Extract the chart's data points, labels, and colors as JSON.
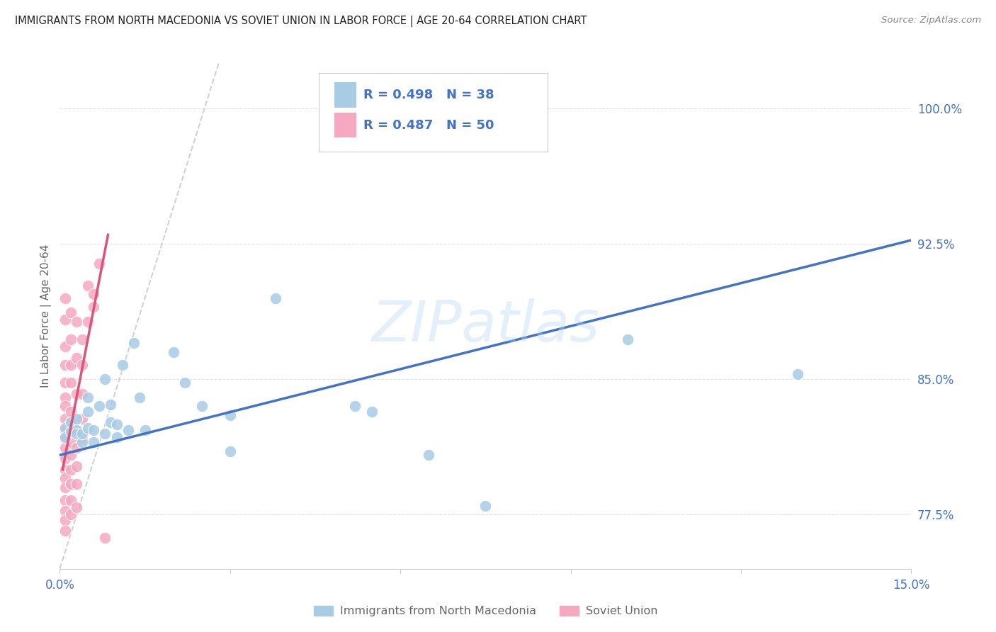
{
  "title": "IMMIGRANTS FROM NORTH MACEDONIA VS SOVIET UNION IN LABOR FORCE | AGE 20-64 CORRELATION CHART",
  "source": "Source: ZipAtlas.com",
  "ylabel": "In Labor Force | Age 20-64",
  "xlim": [
    0.0,
    0.15
  ],
  "ylim": [
    0.745,
    1.025
  ],
  "xticks": [
    0.0,
    0.03,
    0.06,
    0.09,
    0.12,
    0.15
  ],
  "xticklabels": [
    "0.0%",
    "",
    "",
    "",
    "",
    "15.0%"
  ],
  "ytick_positions": [
    0.775,
    0.85,
    0.925,
    1.0
  ],
  "yticklabels_right": [
    "77.5%",
    "85.0%",
    "92.5%",
    "100.0%"
  ],
  "watermark": "ZIPatlas",
  "blue_color": "#a8cce4",
  "pink_color": "#f5a8bf",
  "blue_line_color": "#4472c4",
  "pink_line_color": "#d9547a",
  "dashed_line_color": "#cccccc",
  "text_blue": "#4472c4",
  "label_color": "#666666",
  "title_color": "#222222",
  "source_color": "#888888",
  "grid_color": "#e0e0e0",
  "blue_scatter": [
    [
      0.001,
      0.823
    ],
    [
      0.001,
      0.818
    ],
    [
      0.002,
      0.821
    ],
    [
      0.002,
      0.826
    ],
    [
      0.003,
      0.822
    ],
    [
      0.003,
      0.82
    ],
    [
      0.003,
      0.828
    ],
    [
      0.004,
      0.815
    ],
    [
      0.004,
      0.82
    ],
    [
      0.005,
      0.823
    ],
    [
      0.005,
      0.832
    ],
    [
      0.005,
      0.84
    ],
    [
      0.006,
      0.815
    ],
    [
      0.006,
      0.822
    ],
    [
      0.007,
      0.835
    ],
    [
      0.008,
      0.85
    ],
    [
      0.008,
      0.82
    ],
    [
      0.009,
      0.836
    ],
    [
      0.009,
      0.826
    ],
    [
      0.01,
      0.825
    ],
    [
      0.01,
      0.818
    ],
    [
      0.011,
      0.858
    ],
    [
      0.012,
      0.822
    ],
    [
      0.013,
      0.87
    ],
    [
      0.014,
      0.84
    ],
    [
      0.015,
      0.822
    ],
    [
      0.02,
      0.865
    ],
    [
      0.022,
      0.848
    ],
    [
      0.025,
      0.835
    ],
    [
      0.03,
      0.81
    ],
    [
      0.03,
      0.83
    ],
    [
      0.038,
      0.895
    ],
    [
      0.052,
      0.835
    ],
    [
      0.055,
      0.832
    ],
    [
      0.065,
      0.808
    ],
    [
      0.075,
      0.78
    ],
    [
      0.1,
      0.872
    ],
    [
      0.13,
      0.853
    ]
  ],
  "pink_scatter": [
    [
      0.001,
      0.895
    ],
    [
      0.001,
      0.883
    ],
    [
      0.001,
      0.868
    ],
    [
      0.001,
      0.858
    ],
    [
      0.001,
      0.848
    ],
    [
      0.001,
      0.84
    ],
    [
      0.001,
      0.835
    ],
    [
      0.001,
      0.828
    ],
    [
      0.001,
      0.822
    ],
    [
      0.001,
      0.817
    ],
    [
      0.001,
      0.812
    ],
    [
      0.001,
      0.806
    ],
    [
      0.001,
      0.8
    ],
    [
      0.001,
      0.795
    ],
    [
      0.001,
      0.79
    ],
    [
      0.001,
      0.783
    ],
    [
      0.001,
      0.777
    ],
    [
      0.001,
      0.772
    ],
    [
      0.001,
      0.766
    ],
    [
      0.002,
      0.887
    ],
    [
      0.002,
      0.872
    ],
    [
      0.002,
      0.858
    ],
    [
      0.002,
      0.848
    ],
    [
      0.002,
      0.832
    ],
    [
      0.002,
      0.822
    ],
    [
      0.002,
      0.815
    ],
    [
      0.002,
      0.808
    ],
    [
      0.002,
      0.8
    ],
    [
      0.002,
      0.792
    ],
    [
      0.002,
      0.783
    ],
    [
      0.002,
      0.775
    ],
    [
      0.003,
      0.882
    ],
    [
      0.003,
      0.862
    ],
    [
      0.003,
      0.842
    ],
    [
      0.003,
      0.822
    ],
    [
      0.003,
      0.812
    ],
    [
      0.003,
      0.802
    ],
    [
      0.003,
      0.792
    ],
    [
      0.003,
      0.779
    ],
    [
      0.004,
      0.872
    ],
    [
      0.004,
      0.858
    ],
    [
      0.004,
      0.842
    ],
    [
      0.004,
      0.828
    ],
    [
      0.004,
      0.817
    ],
    [
      0.005,
      0.902
    ],
    [
      0.005,
      0.882
    ],
    [
      0.006,
      0.897
    ],
    [
      0.006,
      0.89
    ],
    [
      0.007,
      0.914
    ],
    [
      0.008,
      0.762
    ]
  ],
  "blue_trendline_x": [
    0.0,
    0.15
  ],
  "blue_trendline_y": [
    0.808,
    0.927
  ],
  "pink_trendline_x": [
    0.0005,
    0.0085
  ],
  "pink_trendline_y": [
    0.8,
    0.93
  ],
  "dashed_line_x": [
    0.0,
    0.028
  ],
  "dashed_line_y": [
    0.745,
    1.025
  ]
}
